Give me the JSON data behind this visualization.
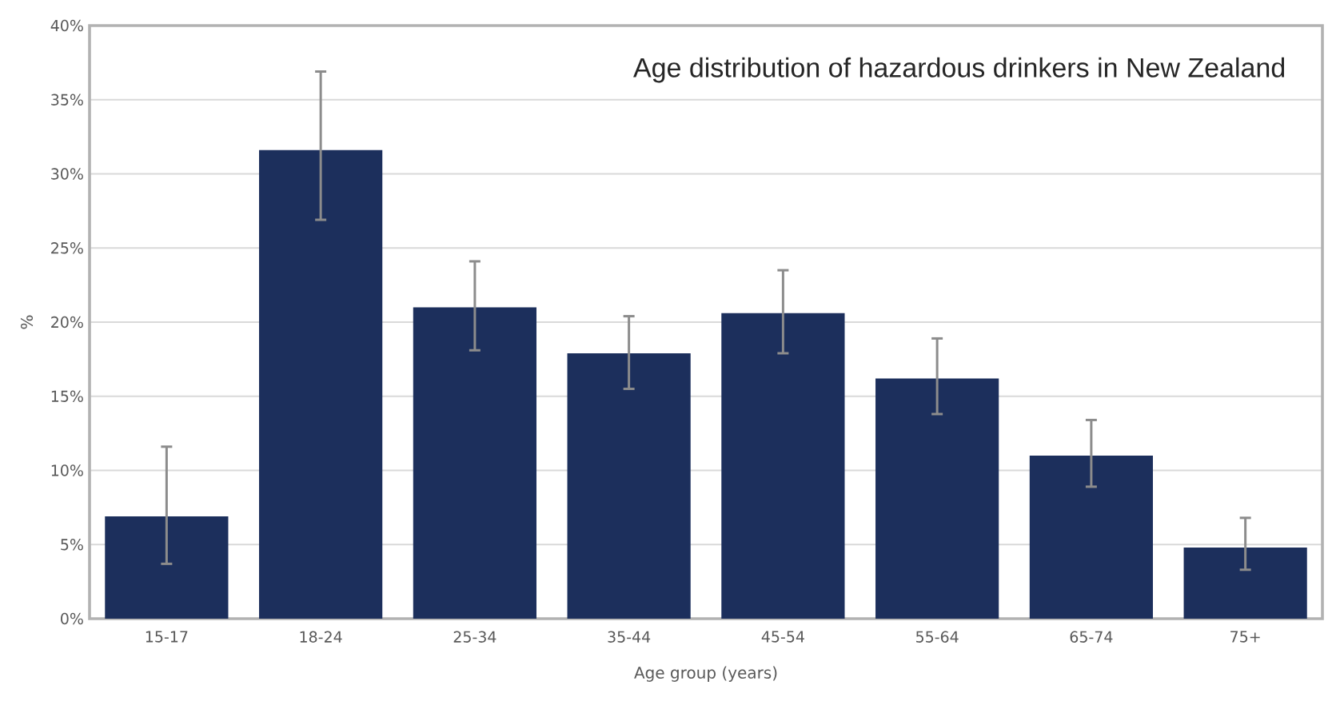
{
  "chart_data": {
    "type": "bar",
    "title": "Age distribution of hazardous drinkers in New Zealand",
    "xlabel": "Age group (years)",
    "ylabel": "%",
    "categories": [
      "15-17",
      "18-24",
      "25-34",
      "35-44",
      "45-54",
      "55-64",
      "65-74",
      "75+"
    ],
    "values": [
      6.9,
      31.6,
      21.0,
      17.9,
      20.6,
      16.2,
      11.0,
      4.8
    ],
    "errors": [
      [
        3.7,
        11.6
      ],
      [
        26.9,
        36.9
      ],
      [
        18.1,
        24.1
      ],
      [
        15.5,
        20.4
      ],
      [
        17.9,
        23.5
      ],
      [
        13.8,
        18.9
      ],
      [
        8.9,
        13.4
      ],
      [
        3.3,
        6.8
      ]
    ],
    "color": "#1c2f5c",
    "ylim": [
      0,
      40
    ],
    "yticks": [
      {
        "value": 0,
        "label": "0%"
      },
      {
        "value": 5,
        "label": "5%"
      },
      {
        "value": 10,
        "label": "10%"
      },
      {
        "value": 15,
        "label": "15%"
      },
      {
        "value": 20,
        "label": "20%"
      },
      {
        "value": 25,
        "label": "25%"
      },
      {
        "value": 30,
        "label": "30%"
      },
      {
        "value": 35,
        "label": "35%"
      },
      {
        "value": 40,
        "label": "40%"
      }
    ],
    "grid": "y"
  }
}
